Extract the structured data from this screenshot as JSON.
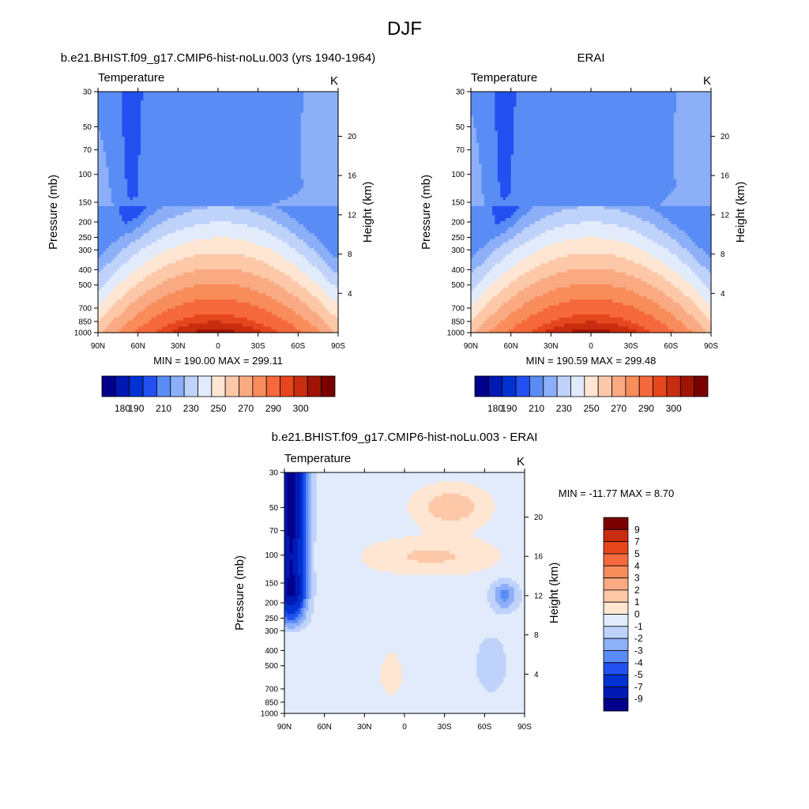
{
  "figure": {
    "title": "DJF"
  },
  "panels": [
    {
      "id": "model",
      "title": "b.e21.BHIST.f09_g17.CMIP6-hist-noLu.003 (yrs 1940-1964)",
      "variable_label": "Temperature",
      "units_label": "K",
      "stats": "MIN = 190.00  MAX = 299.11",
      "palette": "temp"
    },
    {
      "id": "obs",
      "title": "ERAI",
      "variable_label": "Temperature",
      "units_label": "K",
      "stats": "MIN = 190.59  MAX = 299.48",
      "palette": "temp"
    },
    {
      "id": "diff",
      "title": "b.e21.BHIST.f09_g17.CMIP6-hist-noLu.003 - ERAI",
      "variable_label": "Temperature",
      "units_label": "K",
      "stats": "MIN = -11.77  MAX =   8.70",
      "palette": "diff"
    }
  ],
  "axes": {
    "ylabel": "Pressure (mb)",
    "y2label": "Height (km)",
    "pressure_ticks": [
      "30",
      "50",
      "70",
      "100",
      "150",
      "200",
      "250",
      "300",
      "400",
      "500",
      "700",
      "850",
      "1000"
    ],
    "height_ticks": [
      "20",
      "16",
      "12",
      "8",
      "4"
    ],
    "lat_ticks": [
      "90N",
      "60N",
      "30N",
      "0",
      "30S",
      "60S",
      "90S"
    ]
  },
  "colors": {
    "temp": [
      "#00008c",
      "#0019b4",
      "#0032d2",
      "#2350f0",
      "#5a8cf5",
      "#8caff8",
      "#bed2fa",
      "#e1ebfc",
      "#ffe6d2",
      "#fcc8a8",
      "#faaa82",
      "#f88c5a",
      "#f5693c",
      "#e6461e",
      "#c82d0f",
      "#a01405",
      "#7a0000"
    ],
    "diff": [
      "#00008c",
      "#0019b4",
      "#0032d2",
      "#2350f0",
      "#5a8cf5",
      "#8caff8",
      "#bed2fa",
      "#e1ebfc",
      "#ffe6d2",
      "#fcc8a8",
      "#faaa82",
      "#f88c5a",
      "#f5693c",
      "#e6461e",
      "#c82d0f",
      "#7a0000"
    ]
  },
  "colorbars": {
    "temp": {
      "labels": [
        "180",
        "190",
        "210",
        "230",
        "250",
        "270",
        "290",
        "300"
      ]
    },
    "diff": {
      "labels": [
        "9",
        "7",
        "5",
        "4",
        "3",
        "2",
        "1",
        "0",
        "-1",
        "-2",
        "-3",
        "-4",
        "-5",
        "-7",
        "-9"
      ]
    }
  },
  "chart_data": [
    {
      "type": "heatmap",
      "title": "b.e21.BHIST.f09_g17.CMIP6-hist-noLu.003 (yrs 1940-1964)",
      "variable": "Temperature",
      "units": "K",
      "xlabel": "",
      "ylabel": "Pressure (mb)",
      "y2label": "Height (km)",
      "xlim": [
        "90N",
        "90S"
      ],
      "ylim": [
        1000,
        30
      ],
      "y_scale": "log",
      "min": 190.0,
      "max": 299.11,
      "contour_levels": [
        180,
        185,
        190,
        200,
        210,
        220,
        230,
        240,
        250,
        260,
        270,
        280,
        290,
        295,
        300,
        305
      ],
      "legend": "bottom"
    },
    {
      "type": "heatmap",
      "title": "ERAI",
      "variable": "Temperature",
      "units": "K",
      "xlabel": "",
      "ylabel": "Pressure (mb)",
      "y2label": "Height (km)",
      "xlim": [
        "90N",
        "90S"
      ],
      "ylim": [
        1000,
        30
      ],
      "y_scale": "log",
      "min": 190.59,
      "max": 299.48,
      "contour_levels": [
        180,
        185,
        190,
        200,
        210,
        220,
        230,
        240,
        250,
        260,
        270,
        280,
        290,
        295,
        300,
        305
      ],
      "legend": "bottom"
    },
    {
      "type": "heatmap",
      "title": "b.e21.BHIST.f09_g17.CMIP6-hist-noLu.003 - ERAI",
      "variable": "Temperature",
      "units": "K",
      "xlabel": "",
      "ylabel": "Pressure (mb)",
      "y2label": "Height (km)",
      "xlim": [
        "90N",
        "90S"
      ],
      "ylim": [
        1000,
        30
      ],
      "y_scale": "log",
      "min": -11.77,
      "max": 8.7,
      "contour_levels": [
        -9,
        -7,
        -5,
        -4,
        -3,
        -2,
        -1,
        0,
        1,
        2,
        3,
        4,
        5,
        7,
        9
      ],
      "legend": "right"
    }
  ]
}
